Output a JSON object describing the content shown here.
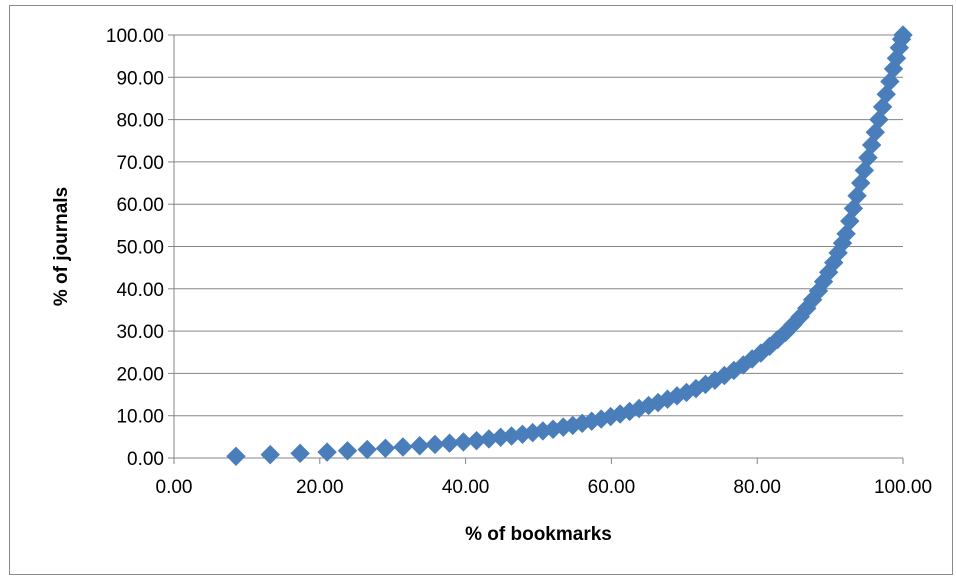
{
  "chart_data": {
    "type": "scatter",
    "title": "",
    "xlabel": "% of bookmarks",
    "ylabel": "% of journals",
    "xlim": [
      0,
      100
    ],
    "ylim": [
      0,
      100
    ],
    "x_ticks": [
      "0.00",
      "20.00",
      "40.00",
      "60.00",
      "80.00",
      "100.00"
    ],
    "y_ticks": [
      "0.00",
      "10.00",
      "20.00",
      "30.00",
      "40.00",
      "50.00",
      "60.00",
      "70.00",
      "80.00",
      "90.00",
      "100.00"
    ],
    "grid": "horizontal",
    "legend": "none",
    "marker": "diamond",
    "color": "#4a7ebb",
    "series": [
      {
        "points": [
          [
            8.5,
            0.4
          ],
          [
            13.2,
            0.8
          ],
          [
            17.3,
            1.1
          ],
          [
            21.0,
            1.4
          ],
          [
            23.8,
            1.7
          ],
          [
            26.5,
            2.0
          ],
          [
            29.0,
            2.3
          ],
          [
            31.4,
            2.6
          ],
          [
            33.7,
            2.9
          ],
          [
            35.8,
            3.2
          ],
          [
            37.8,
            3.5
          ],
          [
            39.7,
            3.8
          ],
          [
            41.5,
            4.1
          ],
          [
            43.2,
            4.5
          ],
          [
            44.8,
            4.9
          ],
          [
            46.3,
            5.2
          ],
          [
            47.8,
            5.6
          ],
          [
            49.2,
            6.0
          ],
          [
            50.6,
            6.4
          ],
          [
            52.0,
            6.8
          ],
          [
            53.4,
            7.3
          ],
          [
            54.7,
            7.7
          ],
          [
            56.0,
            8.2
          ],
          [
            57.3,
            8.7
          ],
          [
            58.6,
            9.2
          ],
          [
            59.9,
            9.8
          ],
          [
            61.2,
            10.4
          ],
          [
            62.5,
            11.0
          ],
          [
            63.8,
            11.7
          ],
          [
            65.1,
            12.4
          ],
          [
            66.4,
            13.1
          ],
          [
            67.7,
            13.9
          ],
          [
            69.0,
            14.7
          ],
          [
            70.3,
            15.5
          ],
          [
            71.6,
            16.4
          ],
          [
            72.9,
            17.4
          ],
          [
            74.2,
            18.4
          ],
          [
            75.5,
            19.5
          ],
          [
            76.8,
            20.7
          ],
          [
            78.1,
            22.0
          ],
          [
            79.3,
            23.4
          ],
          [
            80.5,
            24.8
          ],
          [
            81.7,
            26.4
          ],
          [
            82.8,
            28.0
          ],
          [
            83.9,
            29.7
          ],
          [
            84.9,
            31.5
          ],
          [
            85.9,
            33.4
          ],
          [
            86.8,
            35.4
          ],
          [
            87.6,
            37.4
          ],
          [
            88.4,
            39.5
          ],
          [
            89.1,
            41.7
          ],
          [
            89.8,
            43.9
          ],
          [
            90.5,
            46.2
          ],
          [
            91.1,
            48.5
          ],
          [
            91.7,
            50.8
          ],
          [
            92.2,
            53.0
          ],
          [
            92.7,
            56.0
          ],
          [
            93.2,
            59.0
          ],
          [
            93.7,
            62.0
          ],
          [
            94.2,
            65.0
          ],
          [
            94.7,
            68.0
          ],
          [
            95.2,
            71.0
          ],
          [
            95.7,
            74.0
          ],
          [
            96.2,
            77.0
          ],
          [
            96.7,
            80.0
          ],
          [
            97.2,
            83.0
          ],
          [
            97.7,
            86.0
          ],
          [
            98.2,
            89.0
          ],
          [
            98.7,
            92.0
          ],
          [
            99.1,
            94.5
          ],
          [
            99.5,
            97.0
          ],
          [
            99.8,
            99.0
          ],
          [
            100.0,
            100.0
          ]
        ]
      }
    ]
  }
}
